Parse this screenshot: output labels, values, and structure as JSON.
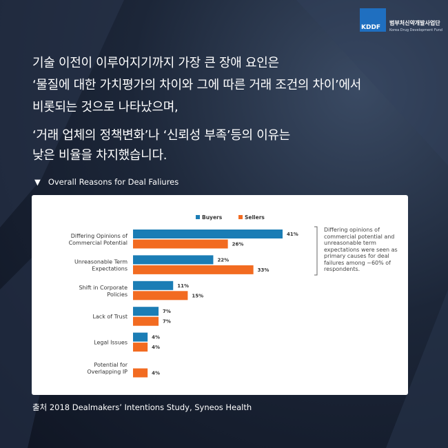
{
  "header": {
    "logo": "KDDF",
    "org_name": "범부처신약개발사업단",
    "org_name_en": "Korea Drug Development Fund"
  },
  "paragraphs": [
    [
      "기술 이전이 이루어지기까지 가장 큰 장애 요인은",
      "‘물질에 대한 가치평가의 차이와 그에 따른 거래 조건의 차이’에서",
      "비롯되는 것으로 나타났으며,"
    ],
    [
      "‘거래 업체의 정책변화’나 ‘신뢰성 부족’등의 이유는",
      "낮은 비율을 차지했습니다."
    ]
  ],
  "section_label": "Overall Reasons for Deal Faliures",
  "chart_data": {
    "type": "bar",
    "orientation": "horizontal",
    "categories": [
      "Differing Opinions of Commercial Potential",
      "Unreasonable Term Expectations",
      "Shift in Corporate Policies",
      "Lack of Trust",
      "Legal Issues",
      "Potential for Overlapping IP"
    ],
    "series": [
      {
        "name": "Buyers",
        "color": "#1b7db5",
        "values": [
          41,
          22,
          11,
          7,
          4,
          null
        ],
        "value_labels": [
          "41%",
          "22%",
          "11%",
          "7%",
          "4%",
          null
        ]
      },
      {
        "name": "Sellers",
        "color": "#f26b21",
        "values": [
          26,
          33,
          15,
          7,
          4,
          4
        ],
        "value_labels": [
          "26%",
          "33%",
          "15%",
          "7%",
          "4%",
          "4%"
        ]
      }
    ],
    "annotation": "Differing opinions of commercial potential and unreasonable term expectations were seen as primary causes for deal failures among ~60% of respondents.",
    "legend": "top"
  },
  "source": "출처 2018 Dealmakers’ Intentions Study, Syneos Health"
}
